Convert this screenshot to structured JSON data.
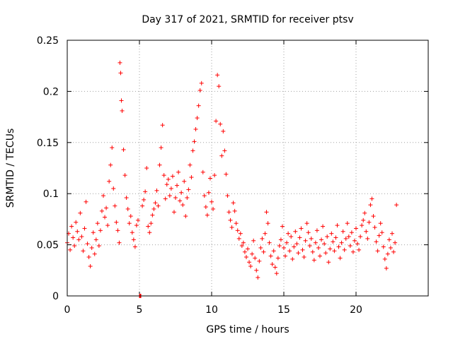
{
  "chart_data": {
    "type": "scatter",
    "title": "Day 317 of 2021, SRMTID for receiver ptsv",
    "xlabel": "GPS time / hours",
    "ylabel": "SRMTID / TECUs",
    "xlim": [
      0,
      25
    ],
    "ylim": [
      0,
      0.25
    ],
    "xticks": [
      0,
      5,
      10,
      15,
      20
    ],
    "xtick_labels": [
      "0",
      "5",
      "10",
      "15",
      "20"
    ],
    "yticks": [
      0,
      0.05,
      0.1,
      0.15,
      0.2,
      0.25
    ],
    "ytick_labels": [
      "0",
      "0.05",
      "0.1",
      "0.15",
      "0.2",
      "0.25"
    ],
    "grid": true,
    "marker": "plus",
    "color": "#ff0000",
    "series": [
      {
        "name": "SRMTID",
        "points": [
          [
            0.0,
            0.052
          ],
          [
            0.1,
            0.061
          ],
          [
            0.2,
            0.045
          ],
          [
            0.3,
            0.068
          ],
          [
            0.4,
            0.057
          ],
          [
            0.5,
            0.049
          ],
          [
            0.6,
            0.072
          ],
          [
            0.7,
            0.063
          ],
          [
            0.8,
            0.055
          ],
          [
            0.9,
            0.081
          ],
          [
            1.0,
            0.058
          ],
          [
            1.1,
            0.044
          ],
          [
            1.2,
            0.066
          ],
          [
            1.3,
            0.092
          ],
          [
            1.4,
            0.051
          ],
          [
            1.5,
            0.038
          ],
          [
            1.6,
            0.029
          ],
          [
            1.7,
            0.047
          ],
          [
            1.8,
            0.062
          ],
          [
            1.9,
            0.041
          ],
          [
            2.0,
            0.055
          ],
          [
            2.1,
            0.071
          ],
          [
            2.2,
            0.049
          ],
          [
            2.3,
            0.064
          ],
          [
            2.4,
            0.083
          ],
          [
            2.5,
            0.098
          ],
          [
            2.6,
            0.077
          ],
          [
            2.7,
            0.086
          ],
          [
            2.8,
            0.069
          ],
          [
            2.9,
            0.112
          ],
          [
            3.0,
            0.128
          ],
          [
            3.1,
            0.145
          ],
          [
            3.2,
            0.105
          ],
          [
            3.3,
            0.088
          ],
          [
            3.4,
            0.072
          ],
          [
            3.5,
            0.064
          ],
          [
            3.6,
            0.052
          ],
          [
            3.65,
            0.228
          ],
          [
            3.7,
            0.218
          ],
          [
            3.75,
            0.191
          ],
          [
            3.8,
            0.181
          ],
          [
            3.9,
            0.143
          ],
          [
            4.0,
            0.118
          ],
          [
            4.1,
            0.096
          ],
          [
            4.2,
            0.085
          ],
          [
            4.3,
            0.071
          ],
          [
            4.4,
            0.078
          ],
          [
            4.5,
            0.062
          ],
          [
            4.6,
            0.055
          ],
          [
            4.7,
            0.048
          ],
          [
            4.8,
            0.069
          ],
          [
            4.9,
            0.074
          ],
          [
            5.0,
            0.0
          ],
          [
            5.05,
            0.0
          ],
          [
            5.1,
            0.0
          ],
          [
            5.2,
            0.088
          ],
          [
            5.3,
            0.094
          ],
          [
            5.4,
            0.102
          ],
          [
            5.5,
            0.125
          ],
          [
            5.6,
            0.068
          ],
          [
            5.7,
            0.062
          ],
          [
            5.8,
            0.071
          ],
          [
            5.9,
            0.079
          ],
          [
            6.0,
            0.085
          ],
          [
            6.1,
            0.091
          ],
          [
            6.2,
            0.103
          ],
          [
            6.3,
            0.088
          ],
          [
            6.4,
            0.128
          ],
          [
            6.5,
            0.145
          ],
          [
            6.6,
            0.167
          ],
          [
            6.7,
            0.118
          ],
          [
            6.8,
            0.095
          ],
          [
            6.9,
            0.109
          ],
          [
            7.0,
            0.114
          ],
          [
            7.1,
            0.098
          ],
          [
            7.2,
            0.105
          ],
          [
            7.3,
            0.117
          ],
          [
            7.4,
            0.082
          ],
          [
            7.5,
            0.096
          ],
          [
            7.6,
            0.108
          ],
          [
            7.7,
            0.121
          ],
          [
            7.8,
            0.093
          ],
          [
            7.9,
            0.101
          ],
          [
            8.0,
            0.089
          ],
          [
            8.1,
            0.112
          ],
          [
            8.2,
            0.078
          ],
          [
            8.3,
            0.096
          ],
          [
            8.4,
            0.104
          ],
          [
            8.5,
            0.128
          ],
          [
            8.6,
            0.116
          ],
          [
            8.7,
            0.142
          ],
          [
            8.8,
            0.151
          ],
          [
            8.9,
            0.163
          ],
          [
            9.0,
            0.174
          ],
          [
            9.1,
            0.186
          ],
          [
            9.2,
            0.201
          ],
          [
            9.3,
            0.208
          ],
          [
            9.4,
            0.121
          ],
          [
            9.5,
            0.098
          ],
          [
            9.6,
            0.087
          ],
          [
            9.7,
            0.079
          ],
          [
            9.8,
            0.101
          ],
          [
            9.9,
            0.115
          ],
          [
            10.0,
            0.092
          ],
          [
            10.1,
            0.085
          ],
          [
            10.2,
            0.118
          ],
          [
            10.3,
            0.171
          ],
          [
            10.4,
            0.216
          ],
          [
            10.5,
            0.205
          ],
          [
            10.6,
            0.168
          ],
          [
            10.7,
            0.137
          ],
          [
            10.8,
            0.161
          ],
          [
            10.9,
            0.142
          ],
          [
            11.0,
            0.119
          ],
          [
            11.1,
            0.098
          ],
          [
            11.2,
            0.082
          ],
          [
            11.3,
            0.074
          ],
          [
            11.4,
            0.067
          ],
          [
            11.5,
            0.091
          ],
          [
            11.6,
            0.083
          ],
          [
            11.7,
            0.071
          ],
          [
            11.8,
            0.064
          ],
          [
            11.9,
            0.056
          ],
          [
            12.0,
            0.061
          ],
          [
            12.1,
            0.049
          ],
          [
            12.2,
            0.052
          ],
          [
            12.3,
            0.043
          ],
          [
            12.4,
            0.038
          ],
          [
            12.5,
            0.046
          ],
          [
            12.6,
            0.033
          ],
          [
            12.7,
            0.029
          ],
          [
            12.8,
            0.041
          ],
          [
            12.9,
            0.054
          ],
          [
            13.0,
            0.037
          ],
          [
            13.1,
            0.025
          ],
          [
            13.2,
            0.018
          ],
          [
            13.3,
            0.034
          ],
          [
            13.4,
            0.047
          ],
          [
            13.5,
            0.056
          ],
          [
            13.6,
            0.043
          ],
          [
            13.7,
            0.061
          ],
          [
            13.8,
            0.082
          ],
          [
            13.9,
            0.071
          ],
          [
            14.0,
            0.052
          ],
          [
            14.1,
            0.039
          ],
          [
            14.2,
            0.031
          ],
          [
            14.3,
            0.044
          ],
          [
            14.4,
            0.028
          ],
          [
            14.5,
            0.022
          ],
          [
            14.6,
            0.037
          ],
          [
            14.7,
            0.049
          ],
          [
            14.8,
            0.055
          ],
          [
            14.9,
            0.068
          ],
          [
            15.0,
            0.047
          ],
          [
            15.1,
            0.039
          ],
          [
            15.2,
            0.052
          ],
          [
            15.3,
            0.061
          ],
          [
            15.4,
            0.044
          ],
          [
            15.5,
            0.058
          ],
          [
            15.6,
            0.036
          ],
          [
            15.7,
            0.048
          ],
          [
            15.8,
            0.063
          ],
          [
            15.9,
            0.051
          ],
          [
            16.0,
            0.042
          ],
          [
            16.1,
            0.057
          ],
          [
            16.2,
            0.066
          ],
          [
            16.3,
            0.045
          ],
          [
            16.4,
            0.038
          ],
          [
            16.5,
            0.054
          ],
          [
            16.6,
            0.071
          ],
          [
            16.7,
            0.062
          ],
          [
            16.8,
            0.049
          ],
          [
            16.9,
            0.056
          ],
          [
            17.0,
            0.043
          ],
          [
            17.1,
            0.035
          ],
          [
            17.2,
            0.052
          ],
          [
            17.3,
            0.064
          ],
          [
            17.4,
            0.047
          ],
          [
            17.5,
            0.039
          ],
          [
            17.6,
            0.055
          ],
          [
            17.7,
            0.068
          ],
          [
            17.8,
            0.051
          ],
          [
            17.9,
            0.042
          ],
          [
            18.0,
            0.058
          ],
          [
            18.1,
            0.033
          ],
          [
            18.2,
            0.046
          ],
          [
            18.3,
            0.061
          ],
          [
            18.4,
            0.053
          ],
          [
            18.5,
            0.044
          ],
          [
            18.6,
            0.057
          ],
          [
            18.7,
            0.069
          ],
          [
            18.8,
            0.048
          ],
          [
            18.9,
            0.037
          ],
          [
            19.0,
            0.052
          ],
          [
            19.1,
            0.063
          ],
          [
            19.2,
            0.045
          ],
          [
            19.3,
            0.056
          ],
          [
            19.4,
            0.071
          ],
          [
            19.5,
            0.058
          ],
          [
            19.6,
            0.049
          ],
          [
            19.7,
            0.062
          ],
          [
            19.8,
            0.043
          ],
          [
            19.9,
            0.054
          ],
          [
            20.0,
            0.066
          ],
          [
            20.1,
            0.051
          ],
          [
            20.2,
            0.045
          ],
          [
            20.3,
            0.058
          ],
          [
            20.4,
            0.069
          ],
          [
            20.5,
            0.074
          ],
          [
            20.6,
            0.081
          ],
          [
            20.7,
            0.063
          ],
          [
            20.8,
            0.056
          ],
          [
            20.9,
            0.072
          ],
          [
            21.0,
            0.089
          ],
          [
            21.1,
            0.095
          ],
          [
            21.2,
            0.078
          ],
          [
            21.3,
            0.067
          ],
          [
            21.4,
            0.053
          ],
          [
            21.5,
            0.044
          ],
          [
            21.6,
            0.059
          ],
          [
            21.7,
            0.071
          ],
          [
            21.8,
            0.062
          ],
          [
            21.9,
            0.048
          ],
          [
            22.0,
            0.036
          ],
          [
            22.1,
            0.027
          ],
          [
            22.2,
            0.041
          ],
          [
            22.3,
            0.055
          ],
          [
            22.4,
            0.047
          ],
          [
            22.5,
            0.061
          ],
          [
            22.6,
            0.043
          ],
          [
            22.7,
            0.052
          ],
          [
            22.8,
            0.089
          ]
        ]
      }
    ]
  }
}
